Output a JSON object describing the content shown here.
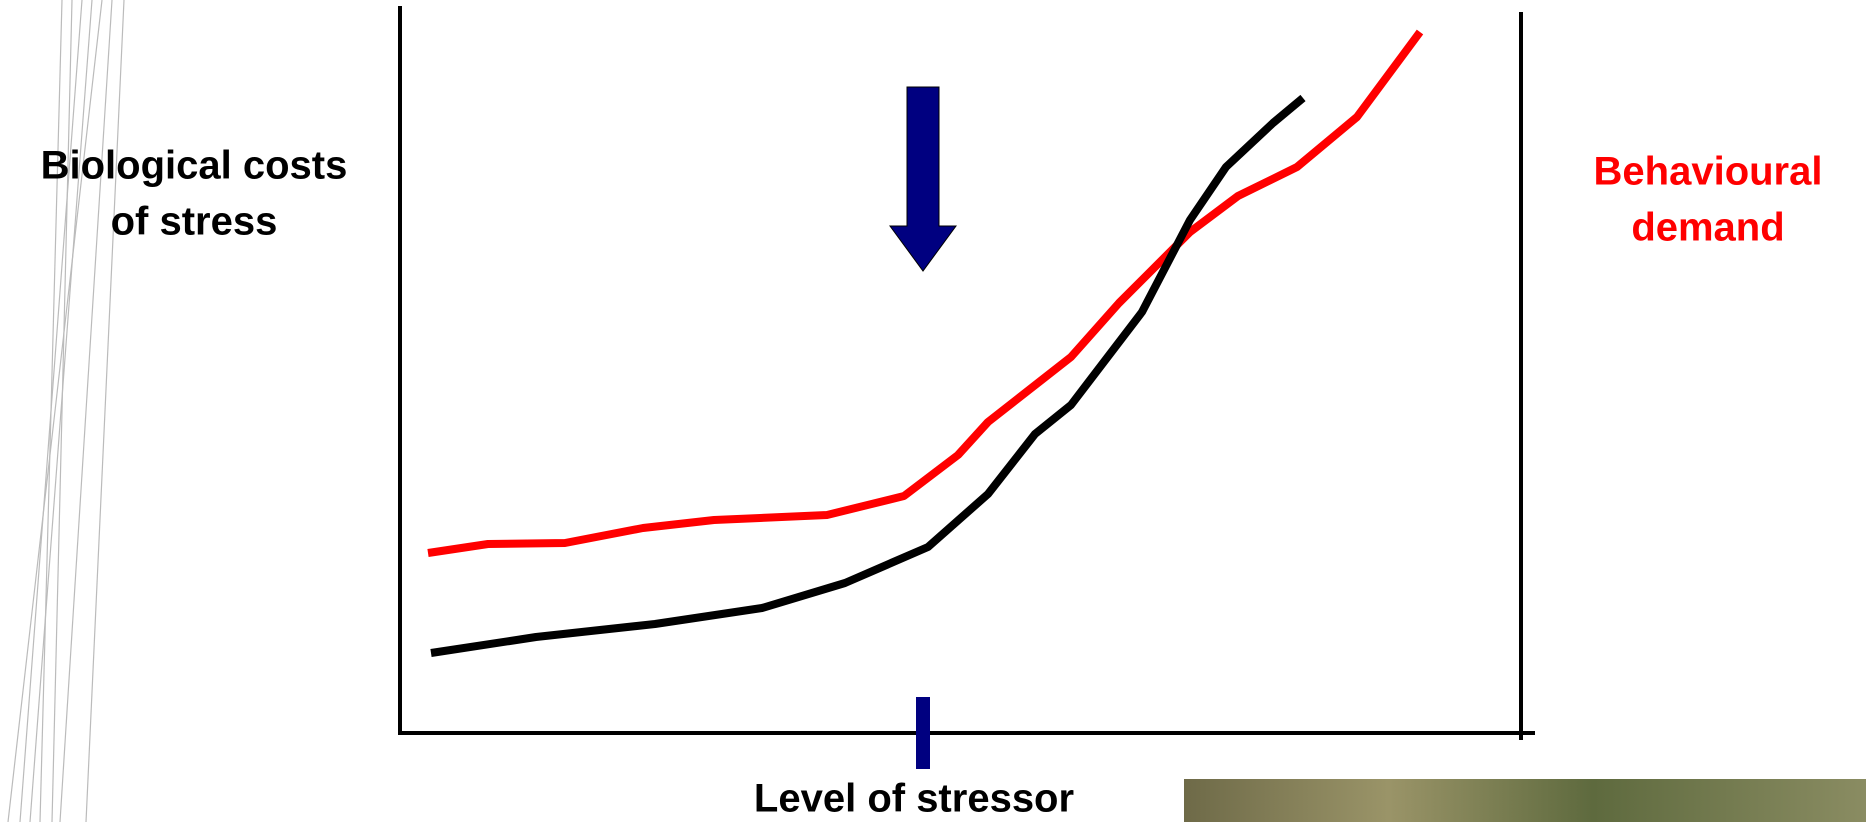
{
  "left_label": [
    "Biological costs",
    "of stress"
  ],
  "right_label": [
    "Behavioural",
    "demand"
  ],
  "x_label": "Level of stressor"
}
